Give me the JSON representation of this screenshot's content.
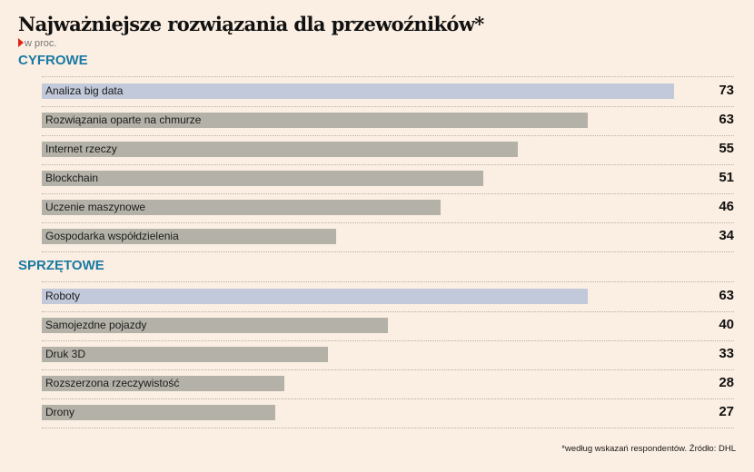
{
  "chart_data": {
    "type": "bar",
    "orientation": "horizontal",
    "title": "Najważniejsze rozwiązania dla przewoźników*",
    "subtitle": "w proc.",
    "unit": "%",
    "xlim": [
      0,
      80
    ],
    "grid": false,
    "colors": {
      "highlight": "#c2c9da",
      "default": "#b4b2a8",
      "section": "#1a7aa3",
      "marker": "#e2231a"
    },
    "groups": [
      {
        "name": "CYFROWE",
        "categories": [
          "Analiza big data",
          "Rozwiązania oparte na chmurze",
          "Internet rzeczy",
          "Blockchain",
          "Uczenie maszynowe",
          "Gospodarka współdzielenia"
        ],
        "values": [
          73,
          63,
          55,
          51,
          46,
          34
        ],
        "highlighted": [
          true,
          false,
          false,
          false,
          false,
          false
        ]
      },
      {
        "name": "SPRZĘTOWE",
        "categories": [
          "Roboty",
          "Samojezdne pojazdy",
          "Druk 3D",
          "Rozszerzona rzeczywistość",
          "Drony"
        ],
        "values": [
          63,
          40,
          33,
          28,
          27
        ],
        "highlighted": [
          true,
          false,
          false,
          false,
          false
        ]
      }
    ],
    "footnote": "*według wskazań respondentów. Źródło: DHL"
  }
}
